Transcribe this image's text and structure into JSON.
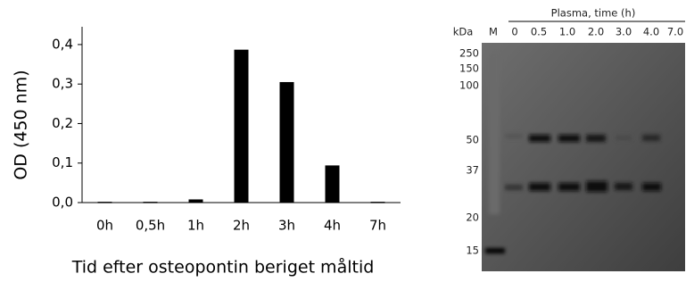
{
  "chart_data": {
    "type": "bar",
    "ylabel": "OD (450 nm)",
    "xlabel": "Tid efter osteopontin beriget måltid",
    "categories": [
      "0h",
      "0,5h",
      "1h",
      "2h",
      "3h",
      "4h",
      "7h"
    ],
    "values": [
      0.002,
      0.002,
      0.008,
      0.387,
      0.305,
      0.094,
      0.002
    ],
    "color": "#000000",
    "ylim": [
      0,
      0.445
    ],
    "yticks": [
      {
        "value": 0,
        "label": "0,0"
      },
      {
        "value": 0.1,
        "label": "0,1"
      },
      {
        "value": 0.2,
        "label": "0,2"
      },
      {
        "value": 0.3,
        "label": "0,3"
      },
      {
        "value": 0.4,
        "label": "0,4"
      }
    ],
    "grid": false
  },
  "blot": {
    "title": "Plasma, time (h)",
    "unit_label": "kDa",
    "marker_lane": "M",
    "lanes": [
      "0",
      "0.5",
      "1.0",
      "2.0",
      "3.0",
      "4.0",
      "7.0"
    ],
    "markers": [
      "250",
      "150",
      "100",
      "50",
      "37",
      "20",
      "15"
    ]
  }
}
